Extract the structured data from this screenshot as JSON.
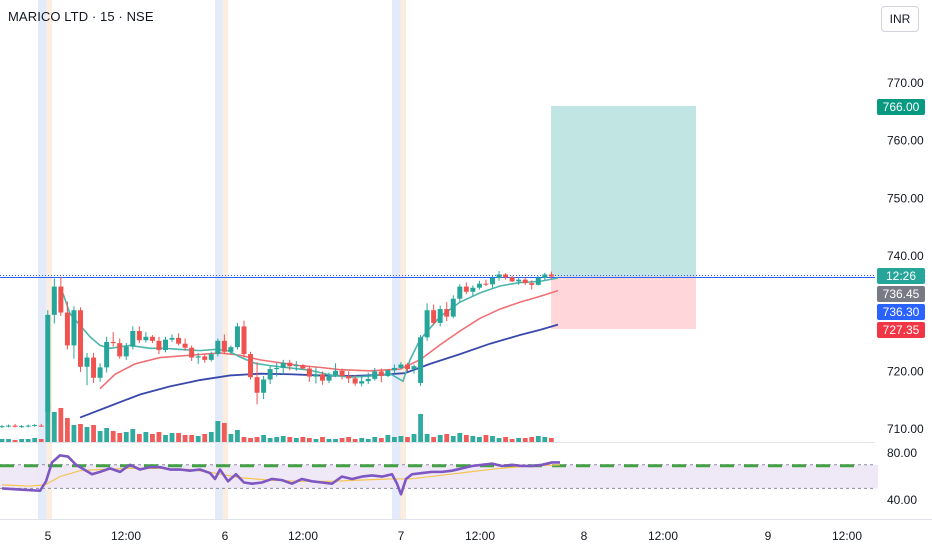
{
  "header": {
    "symbol_title": "MARICO LTD · 15 · NSE",
    "currency_button": "INR"
  },
  "colors": {
    "up": "#26a69a",
    "down": "#ef5350",
    "ema_fast": "#4db6ac",
    "ema_mid": "#ef6f75",
    "ema_slow": "#3949ab",
    "rsi": "#7e57c2",
    "rsi_ma": "#f5c453",
    "profit_zone": "#b2dfdb",
    "loss_zone": "#ffcdd2",
    "current_price_line": "#2962ff"
  },
  "chart_data": {
    "type": "candlestick",
    "x_tick_labels": [
      "5",
      "12:00",
      "6",
      "12:00",
      "7",
      "12:00",
      "8",
      "12:00",
      "9",
      "12:00"
    ],
    "y_tick_labels": [
      "770.00",
      "760.00",
      "750.00",
      "740.00",
      "720.00",
      "710.00"
    ],
    "y_range": [
      708.5,
      773
    ],
    "session_breaks": [
      "5",
      "6",
      "7"
    ],
    "price_labels": {
      "target": "766.00",
      "countdown": "12:26",
      "last_price": "736.45",
      "reference_price": "736.30",
      "stop": "727.35"
    },
    "position": {
      "entry": 736.45,
      "target": 766.0,
      "stop": 727.35
    },
    "candles": [
      [
        710.4,
        710.7,
        710.2,
        710.5
      ],
      [
        710.5,
        710.8,
        710.3,
        710.6
      ],
      [
        710.6,
        710.9,
        710.3,
        710.4
      ],
      [
        710.4,
        710.7,
        710.2,
        710.5
      ],
      [
        710.5,
        710.8,
        710.3,
        710.6
      ],
      [
        710.6,
        710.9,
        710.4,
        710.7
      ],
      [
        710.6,
        710.9,
        710.4,
        710.5
      ],
      [
        713.0,
        730.6,
        711.0,
        729.8
      ],
      [
        729.8,
        736.1,
        728.3,
        734.7
      ],
      [
        734.7,
        736.4,
        729.6,
        730.2
      ],
      [
        730.2,
        732.1,
        723.8,
        724.5
      ],
      [
        724.5,
        731.3,
        722.2,
        730.6
      ],
      [
        730.6,
        731.1,
        719.9,
        720.8
      ],
      [
        720.8,
        723.2,
        717.6,
        722.4
      ],
      [
        722.4,
        723.2,
        718.0,
        718.9
      ],
      [
        718.9,
        721.4,
        718.2,
        720.7
      ],
      [
        720.7,
        726.0,
        719.8,
        725.1
      ],
      [
        725.1,
        726.8,
        724.3,
        724.9
      ],
      [
        724.9,
        725.7,
        722.2,
        722.6
      ],
      [
        722.6,
        724.9,
        722.0,
        724.3
      ],
      [
        724.3,
        727.8,
        723.8,
        727.0
      ],
      [
        727.0,
        727.8,
        724.9,
        725.4
      ],
      [
        725.4,
        726.8,
        725.0,
        726.0
      ],
      [
        726.0,
        726.3,
        724.9,
        725.3
      ],
      [
        725.3,
        726.0,
        723.0,
        723.7
      ],
      [
        723.7,
        726.0,
        723.3,
        725.5
      ],
      [
        725.5,
        726.4,
        725.1,
        725.8
      ],
      [
        725.8,
        726.6,
        724.5,
        724.8
      ],
      [
        724.8,
        725.7,
        723.6,
        724.1
      ],
      [
        724.1,
        724.5,
        721.8,
        722.4
      ],
      [
        722.4,
        723.2,
        721.3,
        722.6
      ],
      [
        722.6,
        723.0,
        721.5,
        722.0
      ],
      [
        722.0,
        723.4,
        721.7,
        723.0
      ],
      [
        723.0,
        725.7,
        722.6,
        725.3
      ],
      [
        725.3,
        726.4,
        723.0,
        723.4
      ],
      [
        723.4,
        724.5,
        723.0,
        724.2
      ],
      [
        724.2,
        728.4,
        723.8,
        727.8
      ],
      [
        727.8,
        728.8,
        722.4,
        723.0
      ],
      [
        723.0,
        723.4,
        718.6,
        719.0
      ],
      [
        719.0,
        721.6,
        714.3,
        716.3
      ],
      [
        716.3,
        719.2,
        715.2,
        718.6
      ],
      [
        718.6,
        721.0,
        717.8,
        720.4
      ],
      [
        720.4,
        721.5,
        719.1,
        720.6
      ],
      [
        720.6,
        722.0,
        719.4,
        721.5
      ],
      [
        721.5,
        722.0,
        720.2,
        720.9
      ],
      [
        720.9,
        721.8,
        720.1,
        721.1
      ],
      [
        721.1,
        721.3,
        720.4,
        720.5
      ],
      [
        720.5,
        721.0,
        718.2,
        719.1
      ],
      [
        719.1,
        720.7,
        717.9,
        719.5
      ],
      [
        719.5,
        720.0,
        717.7,
        718.4
      ],
      [
        718.4,
        719.8,
        718.0,
        719.3
      ],
      [
        719.3,
        721.4,
        719.0,
        720.1
      ],
      [
        720.1,
        720.5,
        718.6,
        719.2
      ],
      [
        719.2,
        720.0,
        718.0,
        718.8
      ],
      [
        718.8,
        719.4,
        717.5,
        717.9
      ],
      [
        717.9,
        719.2,
        717.4,
        718.3
      ],
      [
        718.3,
        719.8,
        717.8,
        718.7
      ],
      [
        718.7,
        720.6,
        718.4,
        720.0
      ],
      [
        720.0,
        720.5,
        718.1,
        719.2
      ],
      [
        719.2,
        720.3,
        719.0,
        720.2
      ],
      [
        720.2,
        721.2,
        719.6,
        720.6
      ],
      [
        720.6,
        721.6,
        720.4,
        721.2
      ],
      [
        721.2,
        721.5,
        720.0,
        720.4
      ],
      [
        720.4,
        721.2,
        719.6,
        720.9
      ],
      [
        718.0,
        726.3,
        717.5,
        725.9
      ],
      [
        725.9,
        731.8,
        725.3,
        730.6
      ],
      [
        730.6,
        731.6,
        728.0,
        728.4
      ],
      [
        728.4,
        731.4,
        727.8,
        730.8
      ],
      [
        730.8,
        732.0,
        728.7,
        729.5
      ],
      [
        729.5,
        733.2,
        729.2,
        732.6
      ],
      [
        732.6,
        735.1,
        732.1,
        734.7
      ],
      [
        734.7,
        735.4,
        733.4,
        733.8
      ],
      [
        733.8,
        734.9,
        733.1,
        734.5
      ],
      [
        734.5,
        735.7,
        734.2,
        735.2
      ],
      [
        735.2,
        735.9,
        734.8,
        735.1
      ],
      [
        735.1,
        736.6,
        734.5,
        736.2
      ],
      [
        736.2,
        737.4,
        735.7,
        736.8
      ],
      [
        736.8,
        737.0,
        735.9,
        736.3
      ],
      [
        736.3,
        736.6,
        735.5,
        735.6
      ],
      [
        735.6,
        736.2,
        735.0,
        735.9
      ],
      [
        735.9,
        736.3,
        735.0,
        735.3
      ],
      [
        735.3,
        735.8,
        734.2,
        735.0
      ],
      [
        735.0,
        736.5,
        734.9,
        736.2
      ],
      [
        736.2,
        737.1,
        735.8,
        736.8
      ],
      [
        736.8,
        737.3,
        736.0,
        736.45
      ]
    ],
    "volume": [
      3,
      3,
      2,
      3,
      3,
      4,
      3,
      40,
      30,
      34,
      24,
      17,
      18,
      15,
      17,
      11,
      14,
      11,
      9,
      10,
      13,
      8,
      10,
      8,
      10,
      7,
      9,
      9,
      7,
      7,
      6,
      8,
      10,
      21,
      19,
      8,
      12,
      5,
      4,
      5,
      7,
      4,
      5,
      6,
      5,
      4,
      5,
      4,
      3,
      5,
      3,
      3,
      4,
      5,
      3,
      4,
      3,
      5,
      4,
      7,
      5,
      6,
      5,
      8,
      28,
      8,
      5,
      7,
      8,
      6,
      9,
      7,
      6,
      5,
      7,
      6,
      4,
      5,
      3,
      4,
      4,
      5,
      6,
      5,
      4
    ],
    "ema_fast": [
      [
        63,
        733.5
      ],
      [
        70,
        730
      ],
      [
        80,
        728
      ],
      [
        90,
        726
      ],
      [
        100,
        724.5
      ],
      [
        110,
        724
      ],
      [
        130,
        724.5
      ],
      [
        150,
        724
      ],
      [
        165,
        724
      ],
      [
        180,
        723.8
      ],
      [
        200,
        723.6
      ],
      [
        215,
        723.8
      ],
      [
        228,
        723.6
      ],
      [
        240,
        722.5
      ],
      [
        255,
        721.4
      ],
      [
        270,
        721
      ],
      [
        290,
        720.6
      ],
      [
        310,
        720.2
      ],
      [
        330,
        719.4
      ],
      [
        350,
        719
      ],
      [
        370,
        719.2
      ],
      [
        390,
        719.6
      ],
      [
        403,
        718.3
      ],
      [
        410,
        722
      ],
      [
        420,
        725.5
      ],
      [
        440,
        729.5
      ],
      [
        460,
        732
      ],
      [
        480,
        733.6
      ],
      [
        500,
        734.8
      ],
      [
        520,
        735.4
      ],
      [
        540,
        735.6
      ],
      [
        558,
        736.2
      ]
    ],
    "ema_mid": [
      [
        100,
        717
      ],
      [
        115,
        719.5
      ],
      [
        135,
        721.3
      ],
      [
        160,
        722.4
      ],
      [
        190,
        722.8
      ],
      [
        220,
        723.2
      ],
      [
        240,
        722.8
      ],
      [
        260,
        722
      ],
      [
        280,
        721.5
      ],
      [
        300,
        721
      ],
      [
        320,
        720.7
      ],
      [
        340,
        720.3
      ],
      [
        370,
        720.1
      ],
      [
        400,
        720.4
      ],
      [
        420,
        722
      ],
      [
        440,
        724.6
      ],
      [
        460,
        727
      ],
      [
        480,
        729.2
      ],
      [
        500,
        730.8
      ],
      [
        520,
        732
      ],
      [
        540,
        733
      ],
      [
        558,
        734
      ]
    ],
    "ema_slow": [
      [
        80,
        712
      ],
      [
        110,
        714
      ],
      [
        140,
        716
      ],
      [
        170,
        717.4
      ],
      [
        200,
        718.5
      ],
      [
        230,
        719.3
      ],
      [
        260,
        719.6
      ],
      [
        290,
        719.5
      ],
      [
        320,
        719.3
      ],
      [
        350,
        719.2
      ],
      [
        380,
        719.4
      ],
      [
        405,
        719.7
      ],
      [
        430,
        721.3
      ],
      [
        460,
        723
      ],
      [
        490,
        724.8
      ],
      [
        520,
        726.3
      ],
      [
        540,
        727.2
      ],
      [
        558,
        728.1
      ]
    ],
    "rsi": {
      "y_tick_labels": [
        "80.00",
        "40.00"
      ],
      "y_range": [
        38,
        82
      ],
      "upper_band": 70,
      "lower_band": 50,
      "rsi_points": [
        [
          2,
          50
        ],
        [
          20,
          49
        ],
        [
          40,
          48
        ],
        [
          46,
          56
        ],
        [
          52,
          72
        ],
        [
          60,
          78
        ],
        [
          68,
          77
        ],
        [
          76,
          70
        ],
        [
          84,
          66
        ],
        [
          92,
          62
        ],
        [
          100,
          64
        ],
        [
          110,
          67
        ],
        [
          120,
          64
        ],
        [
          130,
          70
        ],
        [
          140,
          66
        ],
        [
          150,
          68
        ],
        [
          160,
          68
        ],
        [
          170,
          66
        ],
        [
          180,
          66
        ],
        [
          190,
          65
        ],
        [
          200,
          66
        ],
        [
          210,
          63
        ],
        [
          215,
          58
        ],
        [
          220,
          66
        ],
        [
          228,
          56
        ],
        [
          236,
          62
        ],
        [
          244,
          55
        ],
        [
          252,
          54
        ],
        [
          262,
          55
        ],
        [
          272,
          58
        ],
        [
          282,
          57
        ],
        [
          292,
          54
        ],
        [
          302,
          58
        ],
        [
          312,
          56
        ],
        [
          322,
          55
        ],
        [
          332,
          54
        ],
        [
          342,
          60
        ],
        [
          352,
          58
        ],
        [
          362,
          60
        ],
        [
          372,
          61
        ],
        [
          382,
          60
        ],
        [
          392,
          62
        ],
        [
          397,
          54
        ],
        [
          401,
          45
        ],
        [
          406,
          58
        ],
        [
          412,
          62
        ],
        [
          422,
          63
        ],
        [
          432,
          64
        ],
        [
          442,
          64
        ],
        [
          452,
          65
        ],
        [
          462,
          67
        ],
        [
          472,
          69
        ],
        [
          482,
          70
        ],
        [
          492,
          71
        ],
        [
          502,
          69
        ],
        [
          512,
          70
        ],
        [
          522,
          69
        ],
        [
          532,
          69
        ],
        [
          542,
          70
        ],
        [
          552,
          72
        ],
        [
          560,
          72
        ]
      ],
      "rsi_ma_points": [
        [
          2,
          53
        ],
        [
          30,
          52
        ],
        [
          45,
          53
        ],
        [
          60,
          60
        ],
        [
          80,
          65
        ],
        [
          100,
          66
        ],
        [
          130,
          67
        ],
        [
          160,
          67
        ],
        [
          190,
          66
        ],
        [
          215,
          63
        ],
        [
          240,
          59
        ],
        [
          270,
          57
        ],
        [
          300,
          56
        ],
        [
          330,
          56
        ],
        [
          360,
          57
        ],
        [
          390,
          58
        ],
        [
          410,
          58
        ],
        [
          440,
          61
        ],
        [
          470,
          64
        ],
        [
          500,
          67
        ],
        [
          530,
          69
        ],
        [
          560,
          70
        ]
      ]
    }
  }
}
